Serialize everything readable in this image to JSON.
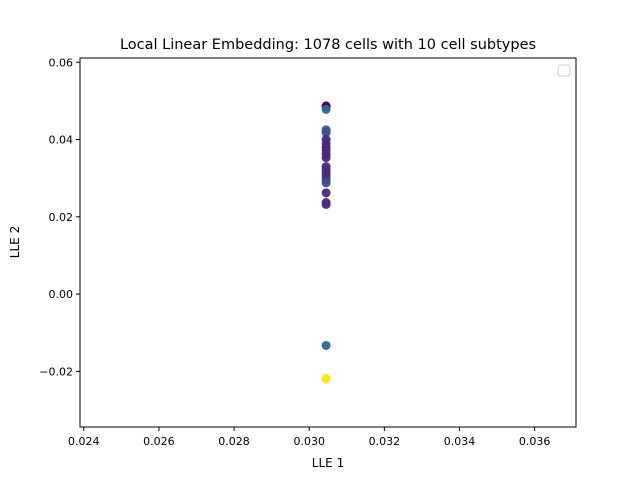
{
  "chart_data": {
    "type": "scatter",
    "title": "Local Linear Embedding: 1078 cells with 10 cell subtypes",
    "xlabel": "LLE 1",
    "ylabel": "LLE 2",
    "xlim": [
      0.0239,
      0.0371
    ],
    "ylim": [
      -0.0344,
      0.0611
    ],
    "x_ticks": [
      0.024,
      0.026,
      0.028,
      0.03,
      0.032,
      0.034,
      0.036
    ],
    "x_tick_labels": [
      "0.024",
      "0.026",
      "0.028",
      "0.030",
      "0.032",
      "0.034",
      "0.036"
    ],
    "y_ticks": [
      -0.02,
      0.0,
      0.02,
      0.04,
      0.06
    ],
    "y_tick_labels": [
      "−0.02",
      "0.00",
      "0.02",
      "0.04",
      "0.06"
    ],
    "grid": false,
    "legend": "top-right, empty",
    "colormap": "viridis",
    "points": [
      {
        "x": 0.03045,
        "y": 0.0485,
        "color": "#440154"
      },
      {
        "x": 0.03045,
        "y": 0.0487,
        "color": "#440154"
      },
      {
        "x": 0.03045,
        "y": 0.0478,
        "color": "#31688e"
      },
      {
        "x": 0.03045,
        "y": 0.0425,
        "color": "#3b528b"
      },
      {
        "x": 0.03045,
        "y": 0.0418,
        "color": "#3b528b"
      },
      {
        "x": 0.03045,
        "y": 0.04,
        "color": "#482878"
      },
      {
        "x": 0.03045,
        "y": 0.039,
        "color": "#482878"
      },
      {
        "x": 0.03045,
        "y": 0.038,
        "color": "#482878"
      },
      {
        "x": 0.03045,
        "y": 0.0372,
        "color": "#482878"
      },
      {
        "x": 0.03045,
        "y": 0.0362,
        "color": "#482878"
      },
      {
        "x": 0.03045,
        "y": 0.0353,
        "color": "#482878"
      },
      {
        "x": 0.03045,
        "y": 0.033,
        "color": "#472d7b"
      },
      {
        "x": 0.03045,
        "y": 0.0322,
        "color": "#472d7b"
      },
      {
        "x": 0.03045,
        "y": 0.0313,
        "color": "#472d7b"
      },
      {
        "x": 0.03045,
        "y": 0.0305,
        "color": "#472d7b"
      },
      {
        "x": 0.03045,
        "y": 0.0295,
        "color": "#472d7b"
      },
      {
        "x": 0.03045,
        "y": 0.0288,
        "color": "#3b528b"
      },
      {
        "x": 0.03045,
        "y": 0.0262,
        "color": "#482878"
      },
      {
        "x": 0.03045,
        "y": 0.0237,
        "color": "#472d7b"
      },
      {
        "x": 0.03045,
        "y": 0.0232,
        "color": "#472d7b"
      },
      {
        "x": 0.03045,
        "y": -0.0133,
        "color": "#31688e"
      },
      {
        "x": 0.03045,
        "y": -0.0218,
        "color": "#fde725"
      },
      {
        "x": 0.03045,
        "y": -0.022,
        "color": "#fde725"
      }
    ]
  }
}
